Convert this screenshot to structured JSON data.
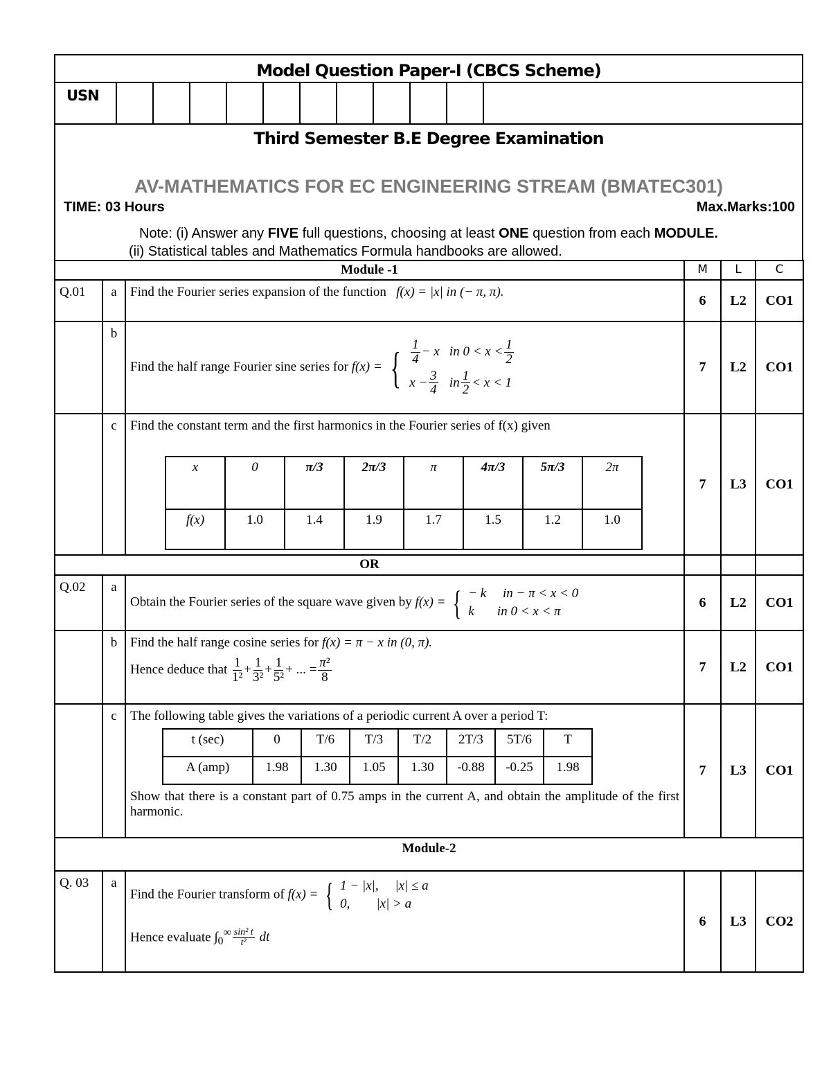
{
  "header": {
    "title": "Model Question Paper-I (CBCS Scheme)",
    "usn_label": "USN",
    "semester": "Third Semester B.E Degree Examination",
    "subject": "AV-MATHEMATICS FOR EC ENGINEERING STREAM (BMATEC301)",
    "time": "TIME: 03 Hours",
    "max_marks": "Max.Marks:100",
    "note_line1": {
      "a": "Note: (i) Answer any ",
      "b": "FIVE",
      "c": " full questions, choosing at least ",
      "d": "ONE",
      "e": " question from each ",
      "f": "MODULE."
    },
    "note_line2": "(ii) Statistical tables and Mathematics Formula handbooks are allowed."
  },
  "columns": {
    "m": "M",
    "l": "L",
    "c": "C"
  },
  "module1": "Module -1",
  "or": "OR",
  "module2": "Module-2",
  "q1": {
    "no": "Q.01",
    "a": {
      "part": "a",
      "text": "Find the Fourier series expansion of the function",
      "formula": "f(x) = |x|  in (− π, π).",
      "m": "6",
      "l": "L2",
      "c": "CO1"
    },
    "b": {
      "part": "b",
      "text": "Find the half range Fourier sine series for",
      "lhs": "f(x) =",
      "case1_expr": "− x",
      "case1_cond": "in 0 < x <",
      "case2_expr": "x −",
      "case2_cond": "< x < 1",
      "case2_in": "in",
      "m": "7",
      "l": "L2",
      "c": "CO1"
    },
    "c": {
      "part": "c",
      "text": "Find the constant term and the first harmonics in the Fourier series of f(x) given",
      "x_label": "x",
      "fx_label": "f(x)",
      "x_values": [
        "0",
        "π/3",
        "2π/3",
        "π",
        "4π/3",
        "5π/3",
        "2π"
      ],
      "fx_values": [
        "1.0",
        "1.4",
        "1.9",
        "1.7",
        "1.5",
        "1.2",
        "1.0"
      ],
      "m": "7",
      "l": "L3",
      "c": "CO1"
    }
  },
  "q2": {
    "no": "Q.02",
    "a": {
      "part": "a",
      "text": "Obtain the Fourier series of the square wave given by",
      "lhs": "f(x) =",
      "case1": "− k     in − π < x < 0",
      "case2": "k       in 0 < x < π",
      "m": "6",
      "l": "L2",
      "c": "CO1"
    },
    "b": {
      "part": "b",
      "text": "Find the half range cosine series for",
      "formula": "f(x) = π − x  in (0, π).",
      "deduce": "Hence deduce that",
      "series": "+ ... =",
      "m": "7",
      "l": "L2",
      "c": "CO1"
    },
    "c": {
      "part": "c",
      "text": "The following table gives the variations of a periodic current A over a period T:",
      "headers": [
        "t (sec)",
        "0",
        "T/6",
        "T/3",
        "T/2",
        "2T/3",
        "5T/6",
        "T"
      ],
      "values": [
        "A (amp)",
        "1.98",
        "1.30",
        "1.05",
        "1.30",
        "-0.88",
        "-0.25",
        "1.98"
      ],
      "text2": "Show that there is a constant part of 0.75 amps in the current A, and obtain the amplitude of the first harmonic.",
      "m": "7",
      "l": "L3",
      "c": "CO1"
    }
  },
  "q3": {
    "no": "Q. 03",
    "a": {
      "part": "a",
      "text": "Find the Fourier transform of",
      "lhs": "f(x) =",
      "case1": "1 − |x|,     |x| ≤ a",
      "case2": "0,        |x| > a",
      "evaluate": "Hence evaluate",
      "integral": "∫₀^∞ sin²t / t² dt",
      "m": "6",
      "l": "L3",
      "c": "CO2"
    }
  }
}
